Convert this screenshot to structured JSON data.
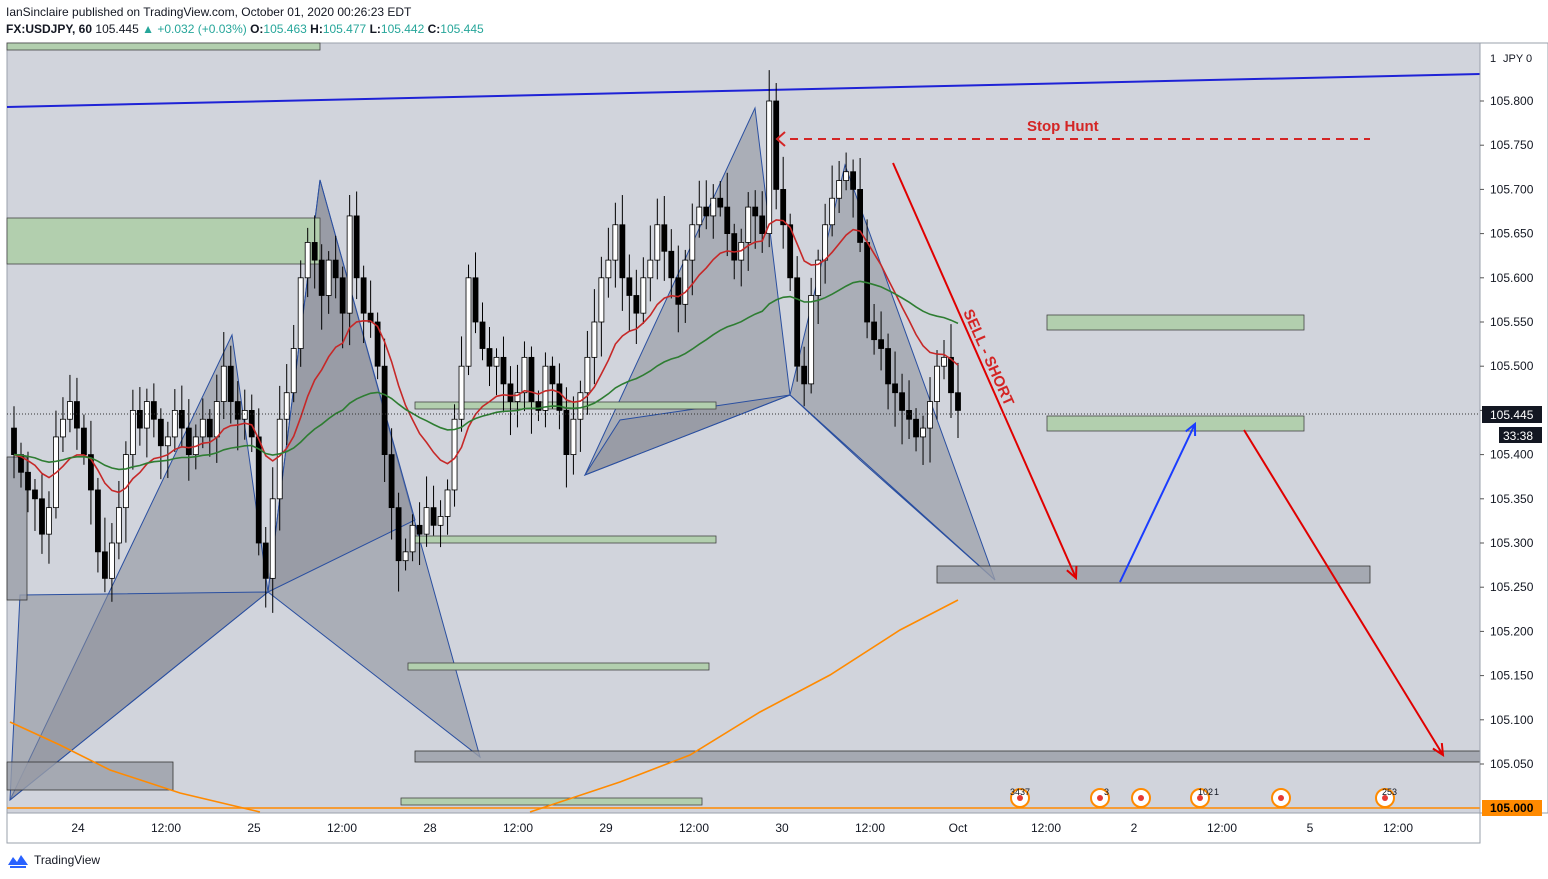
{
  "header": {
    "author": "IanSinclaire",
    "published": "published on TradingView.com, October 01, 2020 00:26:23 EDT",
    "symbol": "FX:USDJPY, 60",
    "last": "105.445",
    "change": "▲ +0.032 (+0.03%)",
    "o_label": "O:",
    "o": "105.463",
    "h_label": "H:",
    "h": "105.477",
    "l_label": "L:",
    "l": "105.442",
    "c_label": "C:",
    "c": "105.445"
  },
  "footer": {
    "brand": "TradingView"
  },
  "axis": {
    "currency": "JPY",
    "scale_hint": "1",
    "zero": "0",
    "y_ticks": [
      "105.800",
      "105.750",
      "105.700",
      "105.650",
      "105.600",
      "105.550",
      "105.500",
      "105.450",
      "105.400",
      "105.350",
      "105.300",
      "105.250",
      "105.200",
      "105.150",
      "105.100",
      "105.050"
    ],
    "price_tag": "105.445",
    "countdown": "33:38",
    "bottom_tag": "105.000",
    "x_ticks": [
      "24",
      "12:00",
      "25",
      "12:00",
      "28",
      "12:00",
      "29",
      "12:00",
      "30",
      "12:00",
      "Oct",
      "12:00",
      "2",
      "12:00",
      "5",
      "12:00"
    ]
  },
  "annotations": {
    "stop_hunt": "Stop Hunt",
    "sell_short": "SELL - SHORT"
  },
  "events": [
    "3437",
    "3",
    "102",
    "1",
    "253"
  ],
  "colors": {
    "background": "#d1d4dc",
    "candle_up": "#ffffff",
    "candle_down": "#000000",
    "ma_red": "#c62828",
    "ma_green": "#2e7d32",
    "ma_orange": "#ff8a00",
    "trendline_blue": "#1e22d6",
    "arrow_red": "#e00000",
    "arrow_blue": "#1a3cff",
    "zone_green": "#b2cfae",
    "zone_grey": "#9a9ea8",
    "pattern_fill": "#8a8e99"
  },
  "chart_data": {
    "type": "candlestick",
    "symbol": "FX:USDJPY",
    "interval": "60",
    "ylim": [
      105.0,
      105.83
    ],
    "y_ticks": [
      105.05,
      105.1,
      105.15,
      105.2,
      105.25,
      105.3,
      105.35,
      105.4,
      105.45,
      105.5,
      105.55,
      105.6,
      105.65,
      105.7,
      105.75,
      105.8
    ],
    "x_labels": [
      "24",
      "12:00",
      "25",
      "12:00",
      "28",
      "12:00",
      "29",
      "12:00",
      "30",
      "12:00",
      "Oct",
      "12:00",
      "2",
      "12:00",
      "5",
      "12:00"
    ],
    "last_price": 105.445,
    "ohlc": {
      "open": 105.463,
      "high": 105.477,
      "low": 105.442,
      "close": 105.445
    },
    "key_levels": {
      "stop_hunt": 105.757,
      "target_1": 105.265,
      "target_2": 105.06,
      "retest": 105.44
    },
    "candle_closes": [
      105.4,
      105.38,
      105.36,
      105.35,
      105.31,
      105.34,
      105.42,
      105.44,
      105.46,
      105.43,
      105.4,
      105.36,
      105.29,
      105.26,
      105.3,
      105.34,
      105.4,
      105.45,
      105.43,
      105.46,
      105.44,
      105.41,
      105.42,
      105.45,
      105.43,
      105.4,
      105.42,
      105.44,
      105.42,
      105.46,
      105.5,
      105.46,
      105.44,
      105.45,
      105.42,
      105.3,
      105.26,
      105.35,
      105.44,
      105.47,
      105.52,
      105.6,
      105.64,
      105.62,
      105.58,
      105.62,
      105.6,
      105.56,
      105.67,
      105.6,
      105.56,
      105.55,
      105.5,
      105.4,
      105.34,
      105.28,
      105.29,
      105.32,
      105.31,
      105.34,
      105.32,
      105.33,
      105.36,
      105.44,
      105.5,
      105.6,
      105.55,
      105.52,
      105.5,
      105.51,
      105.48,
      105.46,
      105.47,
      105.51,
      105.46,
      105.45,
      105.5,
      105.48,
      105.45,
      105.4,
      105.44,
      105.47,
      105.51,
      105.55,
      105.6,
      105.62,
      105.66,
      105.6,
      105.58,
      105.56,
      105.6,
      105.62,
      105.66,
      105.63,
      105.6,
      105.57,
      105.62,
      105.66,
      105.68,
      105.67,
      105.69,
      105.68,
      105.65,
      105.62,
      105.64,
      105.68,
      105.67,
      105.65,
      105.8,
      105.7,
      105.66,
      105.6,
      105.5,
      105.48,
      105.58,
      105.62,
      105.66,
      105.69,
      105.71,
      105.72,
      105.7,
      105.64,
      105.55,
      105.53,
      105.52,
      105.48,
      105.47,
      105.45,
      105.44,
      105.42,
      105.43,
      105.46,
      105.5,
      105.51,
      105.47,
      105.45
    ]
  }
}
